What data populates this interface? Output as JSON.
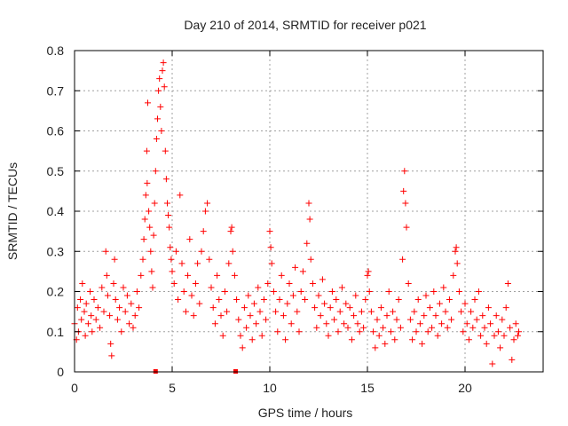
{
  "chart_data": {
    "type": "scatter",
    "title": "Day 210 of 2014, SRMTID for receiver p021",
    "xlabel": "GPS time / hours",
    "ylabel": "SRMTID / TECUs",
    "xlim": [
      0,
      24
    ],
    "ylim": [
      0,
      0.8
    ],
    "x_ticks": [
      0,
      5,
      10,
      15,
      20
    ],
    "y_ticks": [
      0,
      0.1,
      0.2,
      0.3,
      0.4,
      0.5,
      0.6,
      0.7,
      0.8
    ],
    "x_tick_labels": [
      "0",
      "5",
      "10",
      "15",
      "20"
    ],
    "y_tick_labels": [
      "0",
      "0.1",
      "0.2",
      "0.3",
      "0.4",
      "0.5",
      "0.6",
      "0.7",
      "0.8"
    ],
    "grid": true,
    "marker": "+",
    "marker_color": "#ff0000",
    "gap_markers_x": [
      4.15,
      8.25
    ],
    "series": [
      {
        "name": "SRMTID",
        "points": [
          [
            0.0,
            0.12
          ],
          [
            0.1,
            0.08
          ],
          [
            0.15,
            0.16
          ],
          [
            0.2,
            0.1
          ],
          [
            0.3,
            0.18
          ],
          [
            0.35,
            0.13
          ],
          [
            0.4,
            0.22
          ],
          [
            0.5,
            0.15
          ],
          [
            0.55,
            0.09
          ],
          [
            0.6,
            0.17
          ],
          [
            0.7,
            0.12
          ],
          [
            0.8,
            0.2
          ],
          [
            0.85,
            0.14
          ],
          [
            0.9,
            0.1
          ],
          [
            1.0,
            0.18
          ],
          [
            1.1,
            0.13
          ],
          [
            1.2,
            0.16
          ],
          [
            1.3,
            0.11
          ],
          [
            1.4,
            0.21
          ],
          [
            1.5,
            0.15
          ],
          [
            1.6,
            0.3
          ],
          [
            1.65,
            0.24
          ],
          [
            1.7,
            0.19
          ],
          [
            1.8,
            0.14
          ],
          [
            1.85,
            0.07
          ],
          [
            1.9,
            0.04
          ],
          [
            2.0,
            0.22
          ],
          [
            2.05,
            0.28
          ],
          [
            2.1,
            0.18
          ],
          [
            2.2,
            0.13
          ],
          [
            2.3,
            0.16
          ],
          [
            2.4,
            0.1
          ],
          [
            2.5,
            0.21
          ],
          [
            2.6,
            0.15
          ],
          [
            2.7,
            0.19
          ],
          [
            2.8,
            0.12
          ],
          [
            2.9,
            0.17
          ],
          [
            3.0,
            0.11
          ],
          [
            3.1,
            0.14
          ],
          [
            3.2,
            0.2
          ],
          [
            3.3,
            0.16
          ],
          [
            3.4,
            0.24
          ],
          [
            3.5,
            0.28
          ],
          [
            3.55,
            0.33
          ],
          [
            3.6,
            0.38
          ],
          [
            3.65,
            0.44
          ],
          [
            3.7,
            0.55
          ],
          [
            3.72,
            0.47
          ],
          [
            3.75,
            0.67
          ],
          [
            3.8,
            0.4
          ],
          [
            3.85,
            0.36
          ],
          [
            3.9,
            0.3
          ],
          [
            3.95,
            0.25
          ],
          [
            4.0,
            0.21
          ],
          [
            4.05,
            0.34
          ],
          [
            4.1,
            0.42
          ],
          [
            4.15,
            0.5
          ],
          [
            4.2,
            0.58
          ],
          [
            4.25,
            0.63
          ],
          [
            4.3,
            0.7
          ],
          [
            4.35,
            0.73
          ],
          [
            4.4,
            0.66
          ],
          [
            4.45,
            0.6
          ],
          [
            4.5,
            0.75
          ],
          [
            4.55,
            0.77
          ],
          [
            4.6,
            0.71
          ],
          [
            4.65,
            0.55
          ],
          [
            4.7,
            0.48
          ],
          [
            4.75,
            0.42
          ],
          [
            4.8,
            0.39
          ],
          [
            4.85,
            0.36
          ],
          [
            4.9,
            0.31
          ],
          [
            4.95,
            0.28
          ],
          [
            5.0,
            0.25
          ],
          [
            5.1,
            0.22
          ],
          [
            5.2,
            0.3
          ],
          [
            5.3,
            0.18
          ],
          [
            5.4,
            0.44
          ],
          [
            5.5,
            0.27
          ],
          [
            5.6,
            0.2
          ],
          [
            5.7,
            0.15
          ],
          [
            5.8,
            0.24
          ],
          [
            5.9,
            0.33
          ],
          [
            6.0,
            0.19
          ],
          [
            6.1,
            0.14
          ],
          [
            6.2,
            0.22
          ],
          [
            6.3,
            0.27
          ],
          [
            6.4,
            0.17
          ],
          [
            6.5,
            0.3
          ],
          [
            6.6,
            0.35
          ],
          [
            6.7,
            0.4
          ],
          [
            6.8,
            0.42
          ],
          [
            6.9,
            0.28
          ],
          [
            7.0,
            0.21
          ],
          [
            7.1,
            0.16
          ],
          [
            7.2,
            0.12
          ],
          [
            7.3,
            0.24
          ],
          [
            7.4,
            0.18
          ],
          [
            7.5,
            0.14
          ],
          [
            7.6,
            0.09
          ],
          [
            7.7,
            0.2
          ],
          [
            7.8,
            0.15
          ],
          [
            7.9,
            0.27
          ],
          [
            8.0,
            0.35
          ],
          [
            8.05,
            0.36
          ],
          [
            8.1,
            0.3
          ],
          [
            8.2,
            0.24
          ],
          [
            8.3,
            0.18
          ],
          [
            8.4,
            0.13
          ],
          [
            8.5,
            0.09
          ],
          [
            8.6,
            0.06
          ],
          [
            8.7,
            0.16
          ],
          [
            8.8,
            0.11
          ],
          [
            8.9,
            0.19
          ],
          [
            9.0,
            0.14
          ],
          [
            9.1,
            0.08
          ],
          [
            9.2,
            0.17
          ],
          [
            9.3,
            0.12
          ],
          [
            9.4,
            0.21
          ],
          [
            9.5,
            0.15
          ],
          [
            9.6,
            0.09
          ],
          [
            9.7,
            0.18
          ],
          [
            9.8,
            0.13
          ],
          [
            9.9,
            0.22
          ],
          [
            10.0,
            0.35
          ],
          [
            10.05,
            0.31
          ],
          [
            10.1,
            0.27
          ],
          [
            10.2,
            0.2
          ],
          [
            10.3,
            0.15
          ],
          [
            10.4,
            0.1
          ],
          [
            10.5,
            0.18
          ],
          [
            10.6,
            0.24
          ],
          [
            10.7,
            0.14
          ],
          [
            10.8,
            0.08
          ],
          [
            10.9,
            0.17
          ],
          [
            11.0,
            0.22
          ],
          [
            11.1,
            0.12
          ],
          [
            11.2,
            0.19
          ],
          [
            11.3,
            0.26
          ],
          [
            11.4,
            0.15
          ],
          [
            11.5,
            0.1
          ],
          [
            11.6,
            0.2
          ],
          [
            11.7,
            0.25
          ],
          [
            11.8,
            0.18
          ],
          [
            11.9,
            0.32
          ],
          [
            12.0,
            0.42
          ],
          [
            12.05,
            0.38
          ],
          [
            12.1,
            0.28
          ],
          [
            12.2,
            0.22
          ],
          [
            12.3,
            0.16
          ],
          [
            12.4,
            0.11
          ],
          [
            12.5,
            0.19
          ],
          [
            12.6,
            0.14
          ],
          [
            12.7,
            0.23
          ],
          [
            12.8,
            0.17
          ],
          [
            12.9,
            0.12
          ],
          [
            13.0,
            0.09
          ],
          [
            13.1,
            0.16
          ],
          [
            13.2,
            0.2
          ],
          [
            13.3,
            0.13
          ],
          [
            13.4,
            0.18
          ],
          [
            13.5,
            0.1
          ],
          [
            13.6,
            0.15
          ],
          [
            13.7,
            0.21
          ],
          [
            13.8,
            0.12
          ],
          [
            13.9,
            0.17
          ],
          [
            14.0,
            0.11
          ],
          [
            14.1,
            0.16
          ],
          [
            14.2,
            0.08
          ],
          [
            14.3,
            0.14
          ],
          [
            14.4,
            0.19
          ],
          [
            14.5,
            0.12
          ],
          [
            14.6,
            0.1
          ],
          [
            14.7,
            0.15
          ],
          [
            14.8,
            0.11
          ],
          [
            14.9,
            0.18
          ],
          [
            15.0,
            0.24
          ],
          [
            15.05,
            0.25
          ],
          [
            15.1,
            0.2
          ],
          [
            15.2,
            0.15
          ],
          [
            15.3,
            0.1
          ],
          [
            15.4,
            0.06
          ],
          [
            15.5,
            0.13
          ],
          [
            15.6,
            0.09
          ],
          [
            15.7,
            0.16
          ],
          [
            15.8,
            0.11
          ],
          [
            15.9,
            0.07
          ],
          [
            16.0,
            0.14
          ],
          [
            16.1,
            0.2
          ],
          [
            16.2,
            0.1
          ],
          [
            16.3,
            0.15
          ],
          [
            16.4,
            0.08
          ],
          [
            16.5,
            0.13
          ],
          [
            16.6,
            0.18
          ],
          [
            16.7,
            0.11
          ],
          [
            16.8,
            0.28
          ],
          [
            16.85,
            0.45
          ],
          [
            16.9,
            0.5
          ],
          [
            16.95,
            0.42
          ],
          [
            17.0,
            0.36
          ],
          [
            17.1,
            0.22
          ],
          [
            17.2,
            0.13
          ],
          [
            17.3,
            0.08
          ],
          [
            17.4,
            0.15
          ],
          [
            17.5,
            0.1
          ],
          [
            17.6,
            0.18
          ],
          [
            17.7,
            0.12
          ],
          [
            17.8,
            0.07
          ],
          [
            17.9,
            0.14
          ],
          [
            18.0,
            0.19
          ],
          [
            18.1,
            0.1
          ],
          [
            18.2,
            0.16
          ],
          [
            18.3,
            0.11
          ],
          [
            18.4,
            0.2
          ],
          [
            18.5,
            0.14
          ],
          [
            18.6,
            0.09
          ],
          [
            18.7,
            0.17
          ],
          [
            18.8,
            0.12
          ],
          [
            18.9,
            0.21
          ],
          [
            19.0,
            0.15
          ],
          [
            19.1,
            0.11
          ],
          [
            19.2,
            0.18
          ],
          [
            19.3,
            0.13
          ],
          [
            19.4,
            0.24
          ],
          [
            19.5,
            0.3
          ],
          [
            19.55,
            0.31
          ],
          [
            19.6,
            0.27
          ],
          [
            19.7,
            0.2
          ],
          [
            19.8,
            0.15
          ],
          [
            19.9,
            0.1
          ],
          [
            20.0,
            0.17
          ],
          [
            20.1,
            0.12
          ],
          [
            20.2,
            0.08
          ],
          [
            20.3,
            0.15
          ],
          [
            20.4,
            0.11
          ],
          [
            20.5,
            0.18
          ],
          [
            20.6,
            0.13
          ],
          [
            20.7,
            0.2
          ],
          [
            20.8,
            0.09
          ],
          [
            20.9,
            0.14
          ],
          [
            21.0,
            0.11
          ],
          [
            21.1,
            0.07
          ],
          [
            21.2,
            0.16
          ],
          [
            21.3,
            0.12
          ],
          [
            21.4,
            0.02
          ],
          [
            21.5,
            0.09
          ],
          [
            21.6,
            0.14
          ],
          [
            21.7,
            0.1
          ],
          [
            21.8,
            0.06
          ],
          [
            21.9,
            0.13
          ],
          [
            22.0,
            0.09
          ],
          [
            22.1,
            0.16
          ],
          [
            22.2,
            0.22
          ],
          [
            22.3,
            0.11
          ],
          [
            22.4,
            0.03
          ],
          [
            22.5,
            0.08
          ],
          [
            22.6,
            0.12
          ],
          [
            22.7,
            0.09
          ],
          [
            22.75,
            0.1
          ]
        ]
      }
    ]
  }
}
